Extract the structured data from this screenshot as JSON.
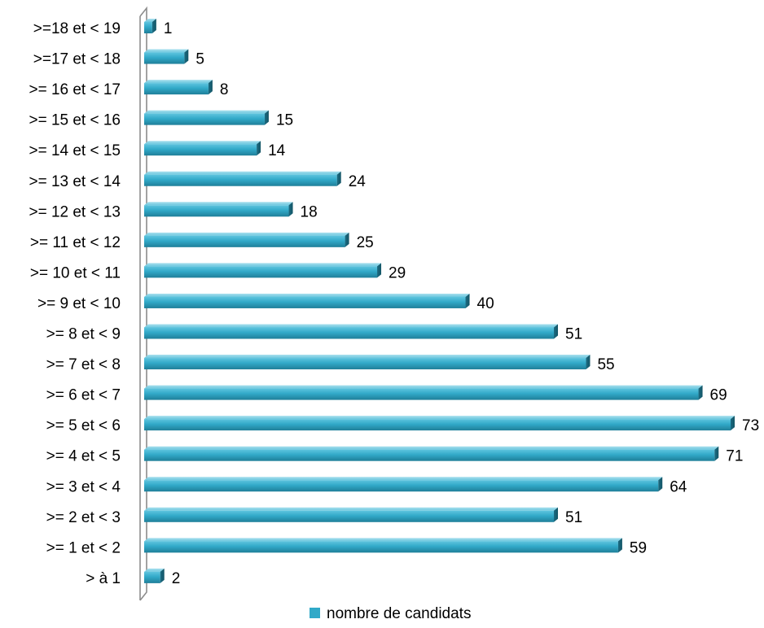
{
  "chart_data": {
    "type": "bar",
    "orientation": "horizontal",
    "categories": [
      ">=18 et < 19",
      ">=17 et < 18",
      ">= 16 et < 17",
      ">= 15 et < 16",
      ">= 14 et < 15",
      ">= 13 et < 14",
      ">= 12 et < 13",
      ">= 11 et < 12",
      ">= 10 et < 11",
      ">= 9 et < 10",
      ">= 8 et < 9",
      ">= 7 et < 8",
      ">= 6 et < 7",
      ">= 5 et < 6",
      ">= 4 et < 5",
      ">= 3 et < 4",
      ">= 2 et < 3",
      ">= 1 et < 2",
      "> à 1"
    ],
    "series": [
      {
        "name": "nombre de candidats",
        "values": [
          1,
          5,
          8,
          15,
          14,
          24,
          18,
          25,
          29,
          40,
          51,
          55,
          69,
          73,
          71,
          64,
          51,
          59,
          2
        ],
        "color": "#31a9c8"
      }
    ],
    "title": "",
    "xlabel": "",
    "ylabel": "",
    "xlim": [
      0,
      73
    ],
    "grid": false,
    "data_labels": true,
    "legend": "bottom",
    "bar_style": "3d"
  }
}
